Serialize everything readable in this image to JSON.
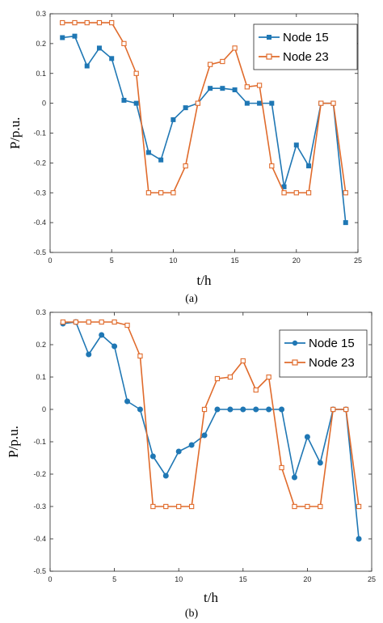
{
  "colors": {
    "node15": "#1f77b4",
    "node23": "#e06b2c"
  },
  "chart_data": [
    {
      "type": "line",
      "panel_label": "(a)",
      "xlabel": "t/h",
      "ylabel": "P/p.u.",
      "xlim": [
        0,
        25
      ],
      "ylim": [
        -0.5,
        0.3
      ],
      "xticks": [
        0,
        5,
        10,
        15,
        20,
        25
      ],
      "yticks": [
        -0.5,
        -0.4,
        -0.3,
        -0.2,
        -0.1,
        0,
        0.1,
        0.2,
        0.3
      ],
      "legend_position": "top-right",
      "x": [
        1,
        2,
        3,
        4,
        5,
        6,
        7,
        8,
        9,
        10,
        11,
        12,
        13,
        14,
        15,
        16,
        17,
        18,
        19,
        20,
        21,
        22,
        23,
        24
      ],
      "series": [
        {
          "name": "Node 15",
          "marker": "filled-square",
          "values": [
            0.22,
            0.225,
            0.125,
            0.185,
            0.15,
            0.01,
            0.0,
            -0.165,
            -0.19,
            -0.055,
            -0.015,
            0.0,
            0.05,
            0.05,
            0.045,
            0.0,
            0.0,
            0.0,
            -0.28,
            -0.14,
            -0.21,
            0.0,
            0.0,
            -0.4
          ]
        },
        {
          "name": "Node 23",
          "marker": "open-square",
          "values": [
            0.27,
            0.27,
            0.27,
            0.27,
            0.27,
            0.2,
            0.1,
            -0.3,
            -0.3,
            -0.3,
            -0.21,
            0.0,
            0.13,
            0.14,
            0.185,
            0.055,
            0.06,
            -0.21,
            -0.3,
            -0.3,
            -0.3,
            0.0,
            0.0,
            -0.3
          ]
        }
      ]
    },
    {
      "type": "line",
      "panel_label": "(b)",
      "xlabel": "t/h",
      "ylabel": "P/p.u.",
      "xlim": [
        0,
        25
      ],
      "ylim": [
        -0.5,
        0.3
      ],
      "xticks": [
        0,
        5,
        10,
        15,
        20,
        25
      ],
      "yticks": [
        -0.5,
        -0.4,
        -0.3,
        -0.2,
        -0.1,
        0,
        0.1,
        0.2,
        0.3
      ],
      "legend_position": "top-right",
      "x": [
        1,
        2,
        3,
        4,
        5,
        6,
        7,
        8,
        9,
        10,
        11,
        12,
        13,
        14,
        15,
        16,
        17,
        18,
        19,
        20,
        21,
        22,
        23,
        24
      ],
      "series": [
        {
          "name": "Node 15",
          "marker": "filled-circle",
          "values": [
            0.265,
            0.27,
            0.17,
            0.23,
            0.195,
            0.025,
            0.0,
            -0.145,
            -0.205,
            -0.13,
            -0.11,
            -0.08,
            0.0,
            0.0,
            0.0,
            0.0,
            0.0,
            0.0,
            -0.21,
            -0.085,
            -0.165,
            0.0,
            0.0,
            -0.4
          ]
        },
        {
          "name": "Node 23",
          "marker": "open-square",
          "values": [
            0.27,
            0.27,
            0.27,
            0.27,
            0.27,
            0.26,
            0.165,
            -0.3,
            -0.3,
            -0.3,
            -0.3,
            0.0,
            0.095,
            0.1,
            0.15,
            0.06,
            0.1,
            -0.18,
            -0.3,
            -0.3,
            -0.3,
            0.0,
            0.0,
            -0.3
          ]
        }
      ]
    }
  ]
}
